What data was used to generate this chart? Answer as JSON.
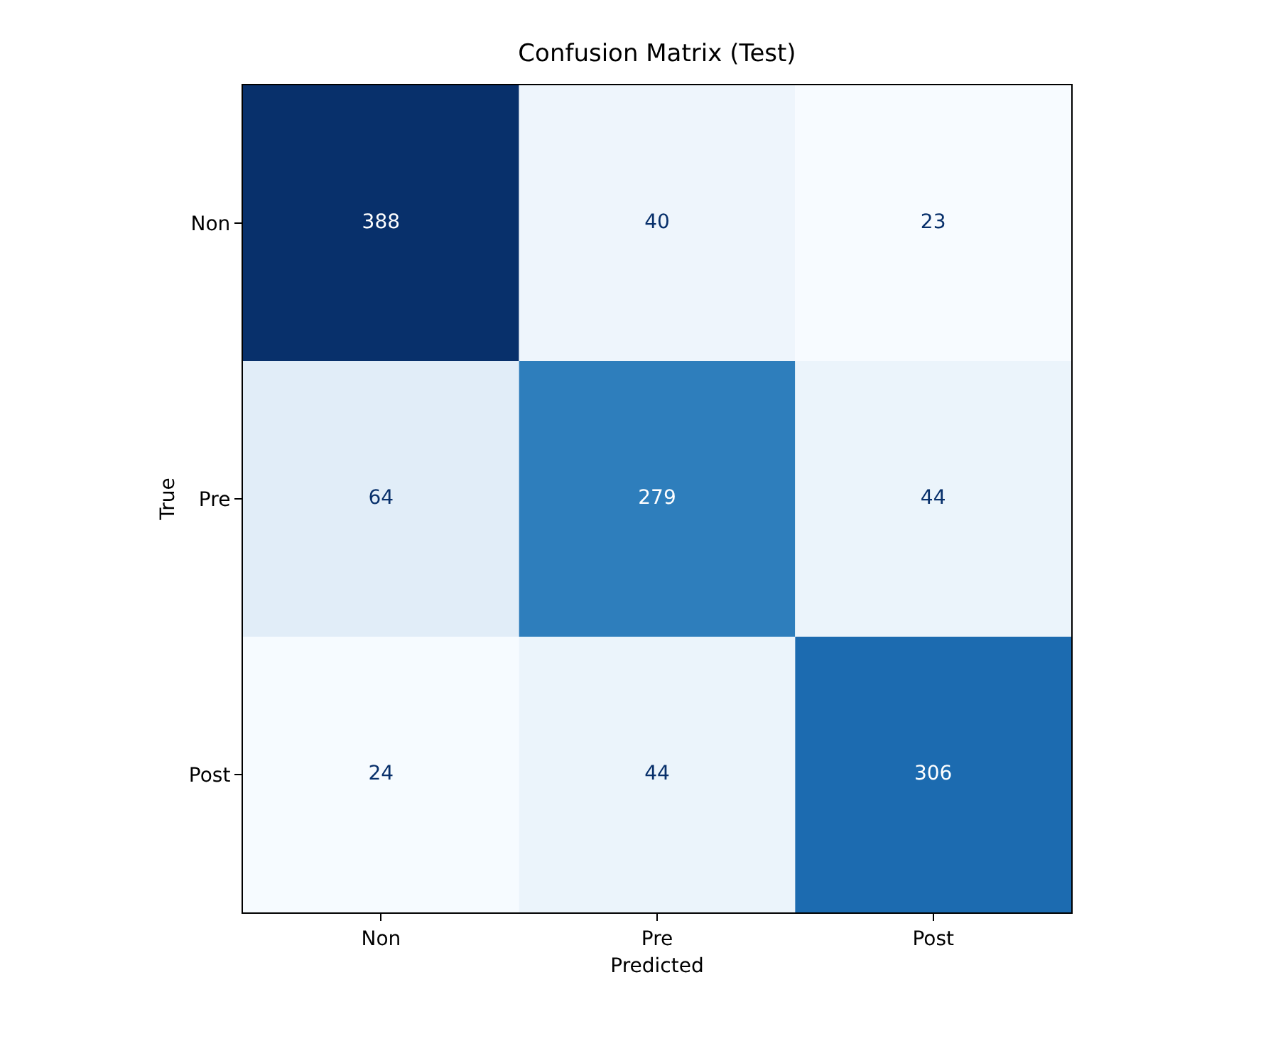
{
  "chart_data": {
    "type": "heatmap",
    "title": "Confusion Matrix (Test)",
    "xlabel": "Predicted",
    "ylabel": "True",
    "categories": [
      "Non",
      "Pre",
      "Post"
    ],
    "y_categories": [
      "Non",
      "Pre",
      "Post"
    ],
    "cells": [
      [
        388,
        40,
        23
      ],
      [
        64,
        279,
        44
      ],
      [
        24,
        44,
        306
      ]
    ],
    "data_labels": true
  }
}
